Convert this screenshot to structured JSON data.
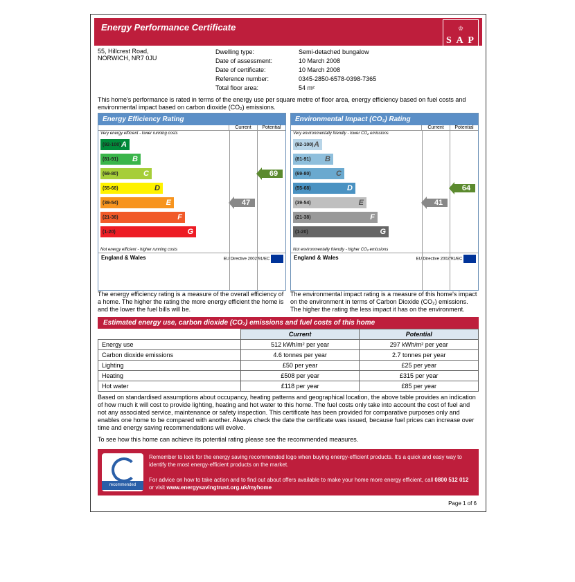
{
  "header": {
    "title": "Energy Performance Certificate",
    "sap": "S A P"
  },
  "property": {
    "address_line1": "55, Hillcrest Road,",
    "address_line2": "NORWICH, NR7 0JU",
    "labels": {
      "dwelling": "Dwelling type:",
      "assessment": "Date of assessment:",
      "certificate": "Date of certificate:",
      "reference": "Reference number:",
      "floor": "Total floor area:"
    },
    "values": {
      "dwelling": "Semi-detached bungalow",
      "assessment": "10 March 2008",
      "certificate": "10 March 2008",
      "reference": "0345-2850-6578-0398-7365",
      "floor": "54 m²"
    }
  },
  "intro": "This home's performance is rated in terms of the energy use per square metre of floor area, energy efficiency based on fuel costs and environmental impact based on carbon dioxide (CO₂) emissions.",
  "ratings": {
    "energy": {
      "title": "Energy Efficiency Rating",
      "top_note": "Very energy efficient - lower running costs",
      "bottom_note": "Not energy efficient - higher running costs",
      "current": 47,
      "potential": 69,
      "current_row": 4,
      "potential_row": 2,
      "bands": [
        {
          "range": "(92-100)",
          "letter": "A",
          "width": 42,
          "color": "#008a3a"
        },
        {
          "range": "(81-91)",
          "letter": "B",
          "width": 58,
          "color": "#3ab54a"
        },
        {
          "range": "(69-80)",
          "letter": "C",
          "width": 74,
          "color": "#a6ce39"
        },
        {
          "range": "(55-68)",
          "letter": "D",
          "width": 90,
          "color": "#fff200",
          "tcolor": "#333"
        },
        {
          "range": "(39-54)",
          "letter": "E",
          "width": 106,
          "color": "#f7941e"
        },
        {
          "range": "(21-38)",
          "letter": "F",
          "width": 122,
          "color": "#f15a29"
        },
        {
          "range": "(1-20)",
          "letter": "G",
          "width": 138,
          "color": "#ed1c24"
        }
      ],
      "desc": "The energy efficiency rating is a measure of the overall efficiency of a home. The higher the rating the more energy efficient the home is and the lower the fuel bills will be."
    },
    "env": {
      "title": "Environmental Impact (CO₂) Rating",
      "top_note": "Very environmentally friendly - lower CO₂ emissions",
      "bottom_note": "Not environmentally friendly - higher CO₂ emissions",
      "current": 41,
      "potential": 64,
      "current_row": 4,
      "potential_row": 3,
      "bands": [
        {
          "range": "(92-100)",
          "letter": "A",
          "width": 42,
          "color": "#b8d5e8",
          "tcolor": "#555"
        },
        {
          "range": "(81-91)",
          "letter": "B",
          "width": 58,
          "color": "#8fbfdc",
          "tcolor": "#555"
        },
        {
          "range": "(69-80)",
          "letter": "C",
          "width": 74,
          "color": "#6aa9cf",
          "tcolor": "#555"
        },
        {
          "range": "(55-68)",
          "letter": "D",
          "width": 90,
          "color": "#4a92c2"
        },
        {
          "range": "(39-54)",
          "letter": "E",
          "width": 106,
          "color": "#bfbfbf",
          "tcolor": "#555"
        },
        {
          "range": "(21-38)",
          "letter": "F",
          "width": 122,
          "color": "#999"
        },
        {
          "range": "(1-20)",
          "letter": "G",
          "width": 138,
          "color": "#666"
        }
      ],
      "desc": "The environmental impact rating is a measure of this home's impact on the environment in terms of Carbon Dioxide (CO₂) emissions. The higher the rating the less impact it has on the environment."
    },
    "cols": {
      "current": "Current",
      "potential": "Potential"
    },
    "region": "England & Wales",
    "eu": "EU Directive 2002/91/EC",
    "arrow_colors": {
      "current": "#888",
      "potential": "#5b8a2e"
    }
  },
  "estimates": {
    "title": "Estimated energy use, carbon dioxide (CO₂) emissions and fuel costs of this home",
    "cols": {
      "current": "Current",
      "potential": "Potential"
    },
    "rows": [
      {
        "label": "Energy use",
        "current": "512 kWh/m² per year",
        "potential": "297 kWh/m² per year"
      },
      {
        "label": "Carbon dioxide emissions",
        "current": "4.6 tonnes per year",
        "potential": "2.7 tonnes per year"
      },
      {
        "label": "Lighting",
        "current": "£50 per year",
        "potential": "£25 per year"
      },
      {
        "label": "Heating",
        "current": "£508 per year",
        "potential": "£315 per year"
      },
      {
        "label": "Hot water",
        "current": "£118 per year",
        "potential": "£85 per year"
      }
    ],
    "desc": "Based on standardised assumptions about occupancy, heating patterns and geographical location, the above table provides an indication of how much it will cost to provide lighting, heating and hot water to this home. The fuel costs only take into account the cost of fuel and not any associated service, maintenance or safety inspection. This certificate has been provided for comparative purposes only and enables one home to be compared with another. Always check the date the certificate was issued, because fuel prices can increase over time and energy saving recommendations will evolve.",
    "link_text": "To see how this home can achieve its potential rating please see the recommended measures."
  },
  "footer": {
    "p1": "Remember to look for the energy saving recommended logo when buying energy-efficient products. It's a quick and easy way to identify the most energy-efficient products on the market.",
    "p2_a": "For advice on how to take action and to find out about offers available to make your home more energy efficient, call ",
    "phone": "0800 512 012",
    "p2_b": " or visit ",
    "url": "www.energysavingtrust.org.uk/myhome",
    "eco_label": "recommended"
  },
  "page_num": "Page 1 of 6"
}
